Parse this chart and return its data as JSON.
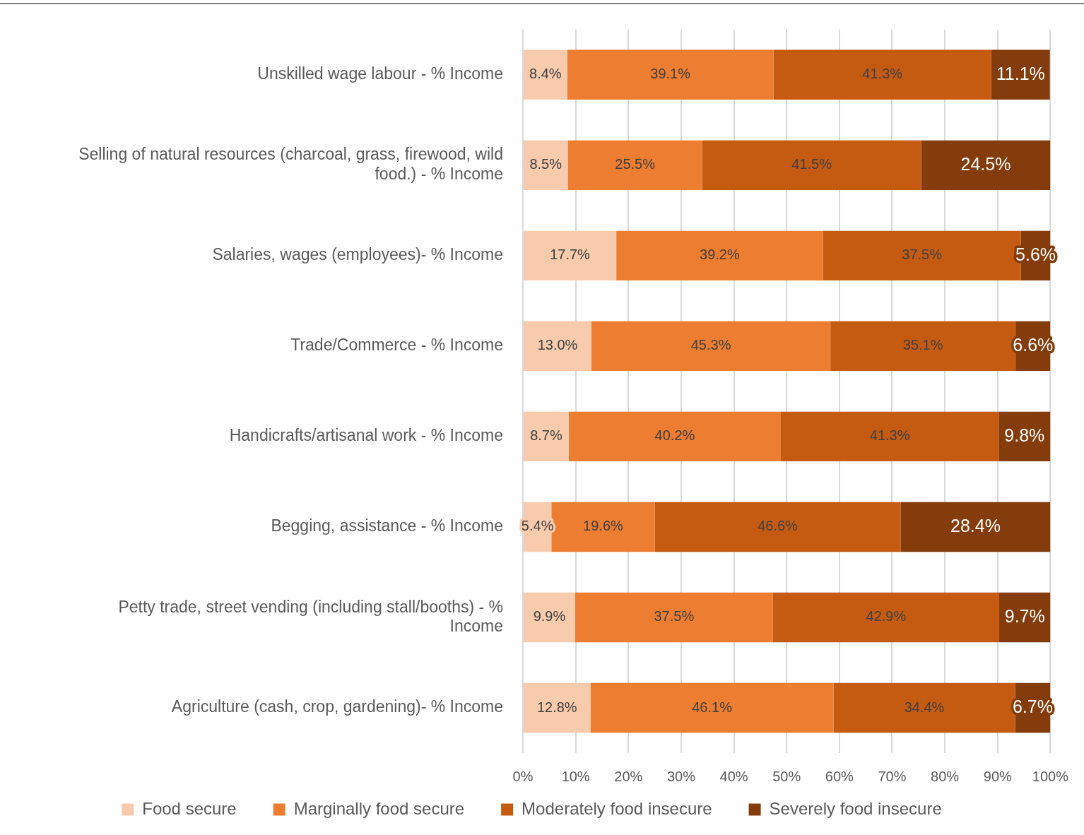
{
  "chart_data": {
    "type": "bar",
    "orientation": "horizontal",
    "stacked": true,
    "categories": [
      "Unskilled wage labour - % Income",
      "Selling of natural resources (charcoal, grass, firewood, wild food.) - % Income",
      "Salaries, wages (employees)- % Income",
      "Trade/Commerce - % Income",
      "Handicrafts/artisanal work - % Income",
      "Begging, assistance - % Income",
      "Petty trade, street vending (including stall/booths) - % Income",
      "Agriculture (cash, crop, gardening)- % Income"
    ],
    "series": [
      {
        "name": "Food secure",
        "color": "#f8cbad",
        "values": [
          8.4,
          8.5,
          17.7,
          13.0,
          8.7,
          5.4,
          9.9,
          12.8
        ],
        "value_labels": [
          "8.4%",
          "8.5%",
          "17.7%",
          "13.0%",
          "8.7%",
          "5.4%",
          "9.9%",
          "12.8%"
        ]
      },
      {
        "name": "Marginally food secure",
        "color": "#ed7d31",
        "values": [
          39.1,
          25.5,
          39.2,
          45.3,
          40.2,
          19.6,
          37.5,
          46.1
        ],
        "value_labels": [
          "39.1%",
          "25.5%",
          "39.2%",
          "45.3%",
          "40.2%",
          "19.6%",
          "37.5%",
          "46.1%"
        ]
      },
      {
        "name": "Moderately food insecure",
        "color": "#c55a11",
        "values": [
          41.3,
          41.5,
          37.5,
          35.1,
          41.3,
          46.6,
          42.9,
          34.4
        ],
        "value_labels": [
          "41.3%",
          "41.5%",
          "37.5%",
          "35.1%",
          "41.3%",
          "46.6%",
          "42.9%",
          "34.4%"
        ]
      },
      {
        "name": "Severely food insecure",
        "color": "#843c0c",
        "values": [
          11.1,
          24.5,
          5.6,
          6.6,
          9.8,
          28.4,
          9.7,
          6.7
        ],
        "value_labels": [
          "11.1%",
          "24.5%",
          "5.6%",
          "6.6%",
          "9.8%",
          "28.4%",
          "9.7%",
          "6.7%"
        ]
      }
    ],
    "xlim": [
      0,
      100
    ],
    "xticks": [
      {
        "value": 0,
        "label": "0%"
      },
      {
        "value": 10,
        "label": "10%"
      },
      {
        "value": 20,
        "label": "20%"
      },
      {
        "value": 30,
        "label": "30%"
      },
      {
        "value": 40,
        "label": "40%"
      },
      {
        "value": 50,
        "label": "50%"
      },
      {
        "value": 60,
        "label": "60%"
      },
      {
        "value": 70,
        "label": "70%"
      },
      {
        "value": 80,
        "label": "80%"
      },
      {
        "value": 90,
        "label": "90%"
      },
      {
        "value": 100,
        "label": "100%"
      }
    ],
    "grid": "x",
    "legend": "bottom"
  }
}
